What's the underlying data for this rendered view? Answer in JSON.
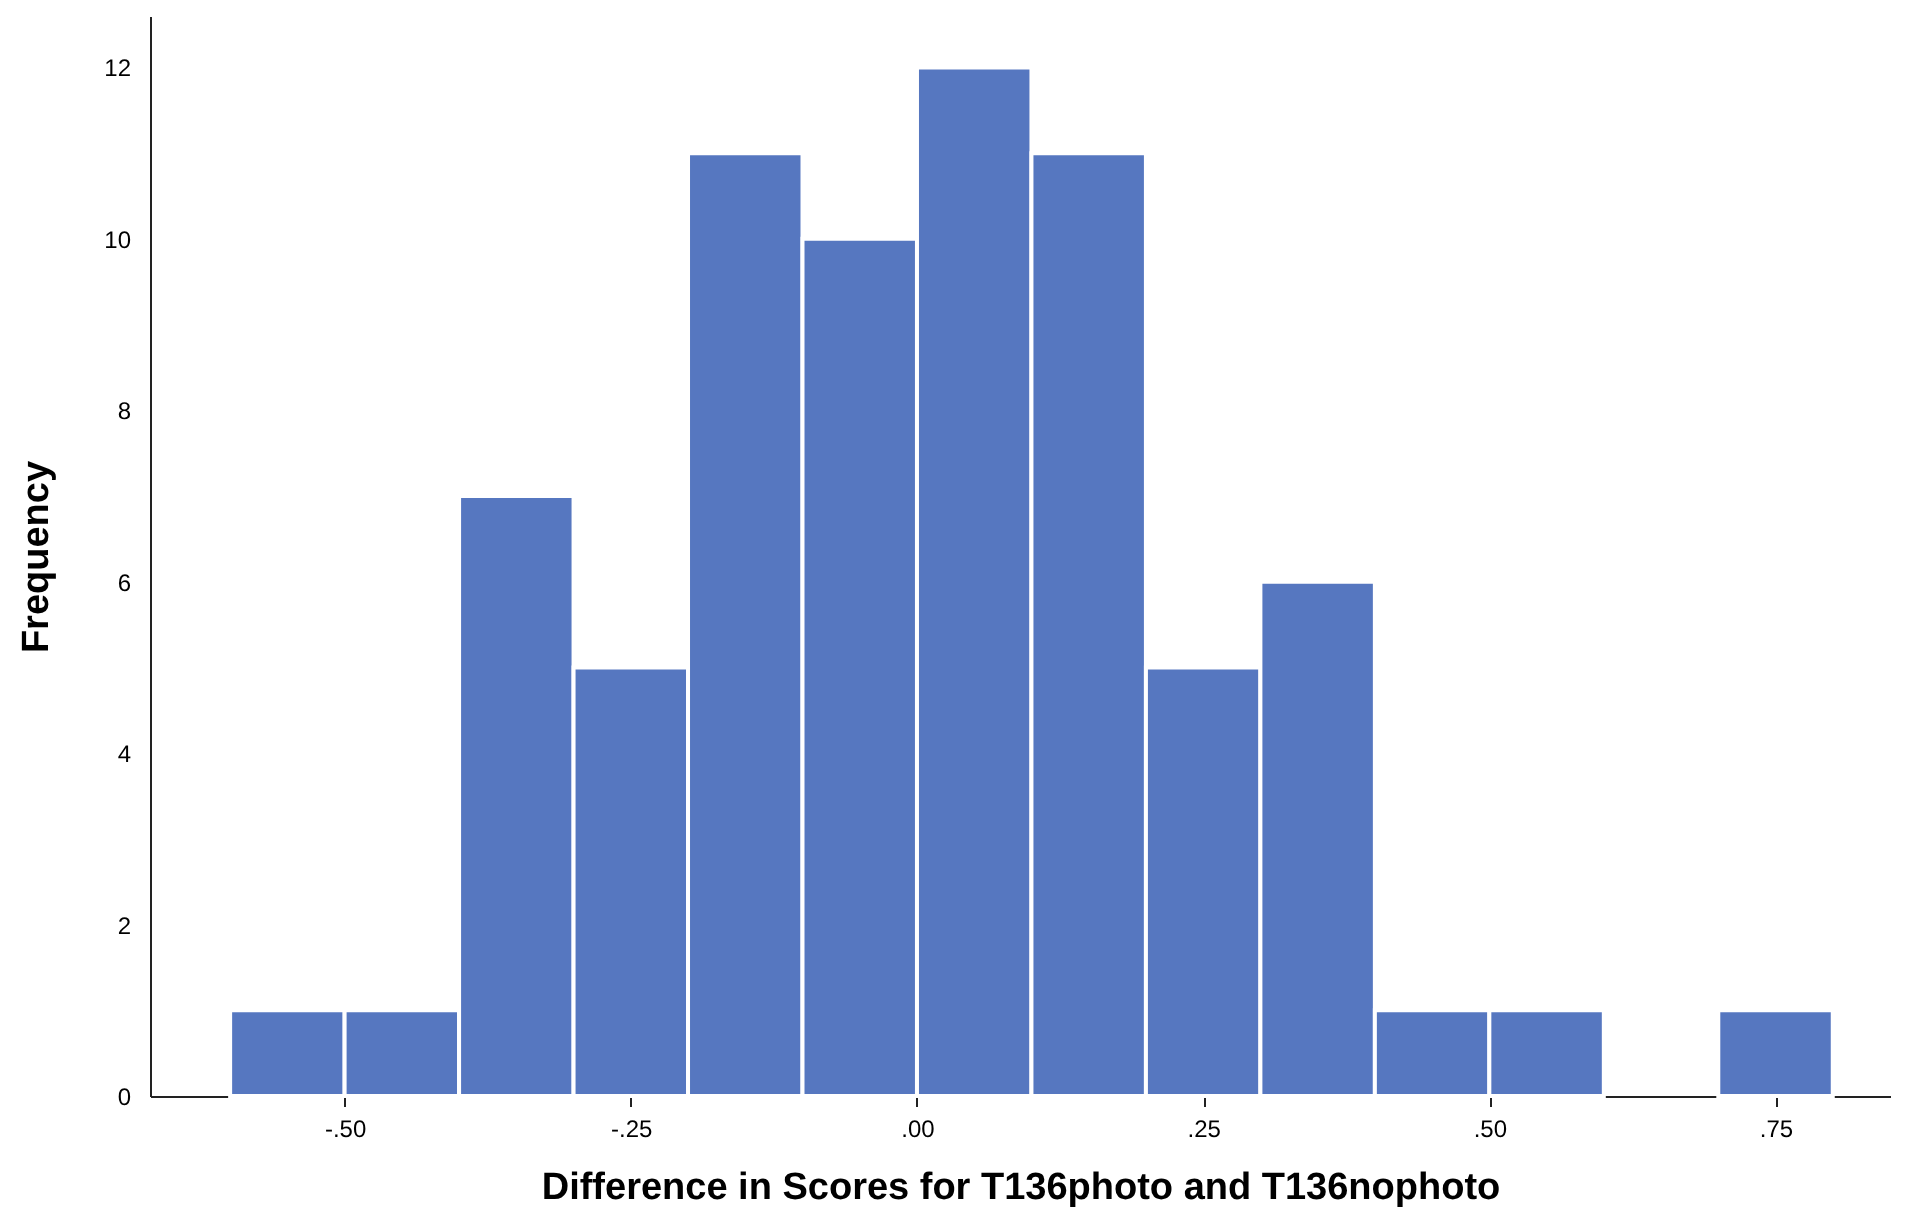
{
  "chart_data": {
    "type": "histogram",
    "xlabel": "Difference in Scores for T136photo and T136nophoto",
    "ylabel": "Frequency",
    "bins": [
      -0.6,
      -0.5,
      -0.4,
      -0.3,
      -0.2,
      -0.1,
      0.0,
      0.1,
      0.2,
      0.3,
      0.4,
      0.5,
      0.6,
      0.7,
      0.8
    ],
    "values": [
      1,
      1,
      7,
      5,
      11,
      10,
      12,
      11,
      5,
      6,
      1,
      1,
      0,
      1
    ],
    "color": "#5677c0",
    "xlim": [
      -0.67,
      0.85
    ],
    "ylim": [
      0,
      12.6
    ],
    "xticks": [
      {
        "value": -0.5,
        "label": "-.50"
      },
      {
        "value": -0.25,
        "label": "-.25"
      },
      {
        "value": 0.0,
        "label": ".00"
      },
      {
        "value": 0.25,
        "label": ".25"
      },
      {
        "value": 0.5,
        "label": ".50"
      },
      {
        "value": 0.75,
        "label": ".75"
      }
    ],
    "yticks": [
      0,
      2,
      4,
      6,
      8,
      10,
      12
    ],
    "grid": false
  }
}
